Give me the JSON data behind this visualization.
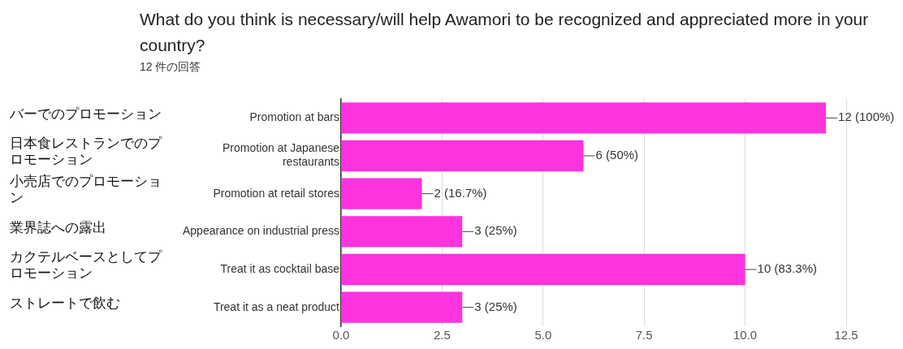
{
  "chart_data": {
    "type": "bar",
    "orientation": "horizontal",
    "title": "What do you think is necessary/will help Awamori to be recognized and appreciated more in your country?",
    "subtitle": "12 件の回答",
    "categories": [
      "Promotion at bars",
      "Promotion at Japanese restaurants",
      "Promotion at retail stores",
      "Appearance on industrial press",
      "Treat it as cocktail base",
      "Treat it as a neat product"
    ],
    "values": [
      12,
      6,
      2,
      3,
      10,
      3
    ],
    "value_labels": [
      "12 (100%)",
      "6 (50%)",
      "2 (16.7%)",
      "3 (25%)",
      "10 (83.3%)",
      "3 (25%)"
    ],
    "color": "#ff33dd",
    "xlim": [
      0,
      12.5
    ],
    "xticks": [
      {
        "value": 0,
        "label": "0.0"
      },
      {
        "value": 2.5,
        "label": "2.5"
      },
      {
        "value": 5,
        "label": "5.0"
      },
      {
        "value": 7.5,
        "label": "7.5"
      },
      {
        "value": 10,
        "label": "10.0"
      },
      {
        "value": 12.5,
        "label": "12.5"
      }
    ],
    "grid": "x",
    "annotations": [
      "バーでのプロモーション",
      "日本食レストランでのプロモーション",
      "小売店でのプロモーション",
      "業界誌への露出",
      "カクテルベースとしてプロモーション",
      "ストレートで飲む"
    ]
  }
}
